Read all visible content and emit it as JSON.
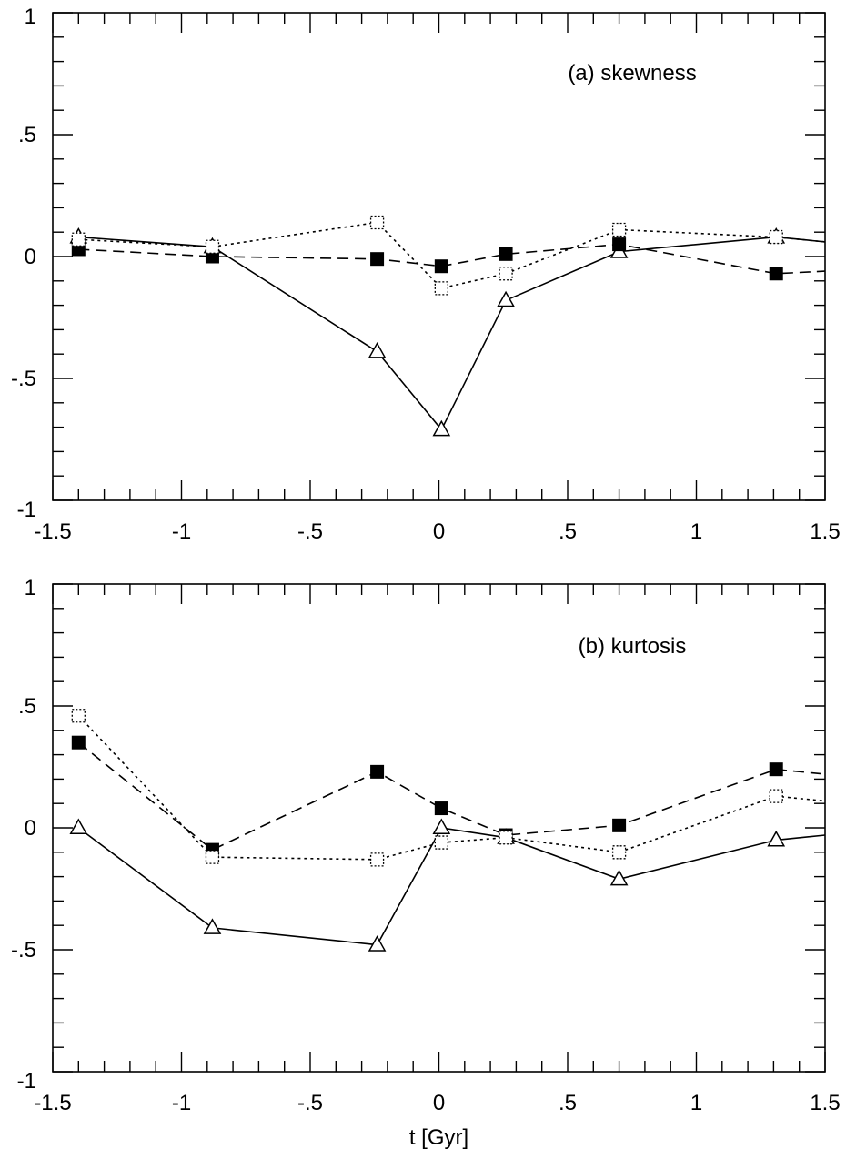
{
  "chart_data": [
    {
      "type": "line",
      "panel_label": "(a) skewness",
      "xlabel": "",
      "ylabel": "",
      "xlim": [
        -1.5,
        1.5
      ],
      "ylim": [
        -1,
        1
      ],
      "x_tick_labels": [
        {
          "value": -1.5,
          "label": "-1.5"
        },
        {
          "value": -1,
          "label": "-1"
        },
        {
          "value": -0.5,
          "label": "-.5"
        },
        {
          "value": 0,
          "label": "0"
        },
        {
          "value": 0.5,
          "label": ".5"
        },
        {
          "value": 1,
          "label": "1"
        },
        {
          "value": 1.5,
          "label": "1.5"
        }
      ],
      "y_tick_labels": [
        {
          "value": -1,
          "label": "-1"
        },
        {
          "value": -0.5,
          "label": "-.5"
        },
        {
          "value": 0,
          "label": "0"
        },
        {
          "value": 0.5,
          "label": ".5"
        },
        {
          "value": 1,
          "label": "1"
        }
      ],
      "series": [
        {
          "line_style": "solid",
          "marker": "open-triangle",
          "color": "#000000",
          "x": [
            -1.4,
            -0.88,
            -0.24,
            0.01,
            0.26,
            0.7,
            1.31,
            1.5
          ],
          "y": [
            0.08,
            0.04,
            -0.39,
            -0.71,
            -0.18,
            0.02,
            0.08,
            0.06
          ],
          "marker_count": 7
        },
        {
          "line_style": "dashed",
          "marker": "filled-square",
          "color": "#000000",
          "x": [
            -1.4,
            -0.88,
            -0.24,
            0.01,
            0.26,
            0.7,
            1.31,
            1.5
          ],
          "y": [
            0.03,
            0.0,
            -0.01,
            -0.04,
            0.01,
            0.05,
            -0.07,
            -0.06
          ],
          "marker_count": 7
        },
        {
          "line_style": "dotted",
          "marker": "open-square",
          "color": "#000000",
          "x": [
            -1.4,
            -0.88,
            -0.24,
            0.01,
            0.26,
            0.7,
            1.31,
            1.5
          ],
          "y": [
            0.07,
            0.04,
            0.14,
            -0.13,
            -0.07,
            0.11,
            0.08,
            0.06
          ],
          "marker_count": 7
        }
      ]
    },
    {
      "type": "line",
      "panel_label": "(b) kurtosis",
      "xlabel": "t [Gyr]",
      "ylabel": "",
      "xlim": [
        -1.5,
        1.5
      ],
      "ylim": [
        -1,
        1
      ],
      "x_tick_labels": [
        {
          "value": -1.5,
          "label": "-1.5"
        },
        {
          "value": -1,
          "label": "-1"
        },
        {
          "value": -0.5,
          "label": "-.5"
        },
        {
          "value": 0,
          "label": "0"
        },
        {
          "value": 0.5,
          "label": ".5"
        },
        {
          "value": 1,
          "label": "1"
        },
        {
          "value": 1.5,
          "label": "1.5"
        }
      ],
      "y_tick_labels": [
        {
          "value": -1,
          "label": "-1"
        },
        {
          "value": -0.5,
          "label": "-.5"
        },
        {
          "value": 0,
          "label": "0"
        },
        {
          "value": 0.5,
          "label": ".5"
        },
        {
          "value": 1,
          "label": "1"
        }
      ],
      "series": [
        {
          "line_style": "solid",
          "marker": "open-triangle",
          "color": "#000000",
          "x": [
            -1.4,
            -0.88,
            -0.24,
            0.01,
            0.26,
            0.7,
            1.31,
            1.5
          ],
          "y": [
            0.0,
            -0.41,
            -0.48,
            0.0,
            -0.04,
            -0.21,
            -0.05,
            -0.03
          ],
          "marker_count": 7
        },
        {
          "line_style": "dashed",
          "marker": "filled-square",
          "color": "#000000",
          "x": [
            -1.4,
            -0.88,
            -0.24,
            0.01,
            0.26,
            0.7,
            1.31,
            1.5
          ],
          "y": [
            0.35,
            -0.09,
            0.23,
            0.08,
            -0.03,
            0.01,
            0.24,
            0.22
          ],
          "marker_count": 7
        },
        {
          "line_style": "dotted",
          "marker": "open-square",
          "color": "#000000",
          "x": [
            -1.4,
            -0.88,
            -0.24,
            0.01,
            0.26,
            0.7,
            1.31,
            1.5
          ],
          "y": [
            0.46,
            -0.12,
            -0.13,
            -0.06,
            -0.04,
            -0.1,
            0.13,
            0.11
          ],
          "marker_count": 7
        }
      ]
    }
  ]
}
